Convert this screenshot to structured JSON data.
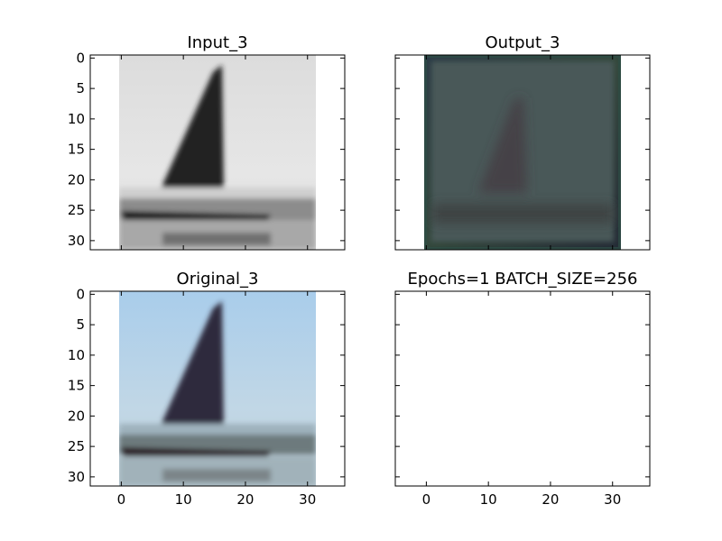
{
  "chart_data": [
    {
      "type": "image",
      "title": "Input_3",
      "image": "grayscale sailboat",
      "xlim": [
        -5,
        36
      ],
      "ylim": [
        31.5,
        -0.5
      ],
      "xticks": [],
      "yticks": [
        0,
        5,
        10,
        15,
        20,
        25,
        30
      ],
      "image_extent": [
        -0.5,
        31.5,
        31.5,
        -0.5
      ]
    },
    {
      "type": "image",
      "title": "Output_3",
      "image": "dark reconstruction of sailboat",
      "xlim": [
        -5,
        36
      ],
      "ylim": [
        31.5,
        -0.5
      ],
      "xticks": [],
      "yticks": [],
      "image_extent": [
        -0.5,
        31.5,
        31.5,
        -0.5
      ]
    },
    {
      "type": "image",
      "title": "Original_3",
      "image": "color sailboat on blue sky",
      "xlim": [
        -5,
        36
      ],
      "ylim": [
        31.5,
        -0.5
      ],
      "xticks": [
        0,
        10,
        20,
        30
      ],
      "yticks": [
        0,
        5,
        10,
        15,
        20,
        25,
        30
      ],
      "image_extent": [
        -0.5,
        31.5,
        31.5,
        -0.5
      ]
    },
    {
      "type": "image",
      "title": "Epochs=1 BATCH_SIZE=256",
      "image": "",
      "xlim": [
        -5,
        36
      ],
      "ylim": [
        31.5,
        -0.5
      ],
      "xticks": [
        0,
        10,
        20,
        30
      ],
      "yticks": [],
      "image_extent": null
    }
  ],
  "colors": {
    "sky_original": "#b8d3e8",
    "sail_original": "#2e2a3e",
    "sky_input": "#e4e4e4",
    "sail_input": "#222222",
    "output_base": "#485859",
    "output_border": "#35483f"
  }
}
